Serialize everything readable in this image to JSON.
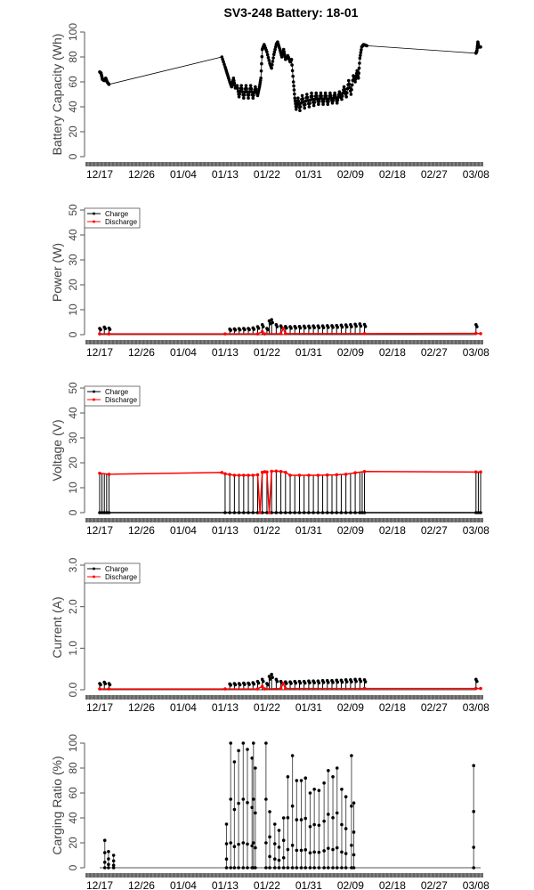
{
  "title": "SV3-248 Battery: 18-01",
  "x_axis": {
    "origin_date": "12/17",
    "tick_labels": [
      "12/17",
      "12/26",
      "01/04",
      "01/13",
      "01/22",
      "01/31",
      "02/09",
      "02/18",
      "02/27",
      "03/08"
    ],
    "tick_days": [
      0,
      9,
      18,
      27,
      36,
      45,
      54,
      63,
      72,
      81
    ],
    "day_range": [
      -3,
      82.5
    ]
  },
  "colors": {
    "charge": "#000000",
    "discharge": "#ff0000",
    "axis": "#555555"
  },
  "chart_data": [
    {
      "type": "line",
      "ylabel": "Battery Capacity (Wh)",
      "ylim": [
        0,
        100
      ],
      "yticks": [
        0,
        20,
        40,
        60,
        80,
        100
      ],
      "legend": null,
      "series": [
        {
          "name": "Battery Capacity",
          "color": "#000000",
          "points": [
            [
              0,
              68
            ],
            [
              0.3,
              67
            ],
            [
              0.6,
              62
            ],
            [
              1,
              61
            ],
            [
              1.3,
              63
            ],
            [
              1.6,
              60
            ],
            [
              2,
              58
            ],
            [
              26.3,
              80
            ],
            [
              27,
              72
            ],
            [
              27.5,
              66
            ],
            [
              28,
              60
            ],
            [
              28.4,
              56
            ],
            [
              28.8,
              63
            ],
            [
              29.2,
              55
            ],
            [
              29.6,
              57
            ],
            [
              30,
              48
            ],
            [
              30.5,
              57
            ],
            [
              31,
              47
            ],
            [
              31.5,
              57
            ],
            [
              32,
              47
            ],
            [
              32.5,
              57
            ],
            [
              33,
              47
            ],
            [
              33.5,
              56
            ],
            [
              34,
              49
            ],
            [
              34.4,
              56
            ],
            [
              34.7,
              63
            ],
            [
              35,
              86
            ],
            [
              35.4,
              90
            ],
            [
              36,
              84
            ],
            [
              36.6,
              75
            ],
            [
              37,
              71
            ],
            [
              37.5,
              82
            ],
            [
              38,
              90
            ],
            [
              38.3,
              92
            ],
            [
              38.8,
              86
            ],
            [
              39.2,
              80
            ],
            [
              39.6,
              86
            ],
            [
              40,
              78
            ],
            [
              40.5,
              81
            ],
            [
              41,
              76
            ],
            [
              41.3,
              78
            ],
            [
              41.7,
              60
            ],
            [
              42,
              47
            ],
            [
              42.3,
              38
            ],
            [
              42.7,
              47
            ],
            [
              43.1,
              37
            ],
            [
              43.6,
              49
            ],
            [
              44.1,
              39
            ],
            [
              44.6,
              50
            ],
            [
              45.1,
              40
            ],
            [
              45.6,
              51
            ],
            [
              46.1,
              41
            ],
            [
              46.6,
              51
            ],
            [
              47.1,
              42
            ],
            [
              47.6,
              51
            ],
            [
              48.1,
              42
            ],
            [
              48.6,
              51
            ],
            [
              49.1,
              42
            ],
            [
              49.6,
              51
            ],
            [
              50.1,
              43
            ],
            [
              50.6,
              51
            ],
            [
              51.1,
              43
            ],
            [
              51.6,
              52
            ],
            [
              52.1,
              46
            ],
            [
              52.6,
              56
            ],
            [
              53.1,
              48
            ],
            [
              53.6,
              61
            ],
            [
              54.1,
              50
            ],
            [
              54.6,
              65
            ],
            [
              55,
              60
            ],
            [
              55.4,
              69
            ],
            [
              55.7,
              63
            ],
            [
              56,
              79
            ],
            [
              56.4,
              88
            ],
            [
              56.8,
              90
            ],
            [
              57.5,
              89
            ],
            [
              81,
              83
            ],
            [
              81.2,
              85
            ],
            [
              81.4,
              92
            ],
            [
              81.6,
              88
            ],
            [
              82,
              88
            ]
          ]
        }
      ]
    },
    {
      "type": "line",
      "ylabel": "Power (W)",
      "ylim": [
        0,
        50
      ],
      "yticks": [
        0,
        10,
        20,
        30,
        40,
        50
      ],
      "legend": {
        "position": "top-left",
        "entries": [
          "Charge",
          "Discharge"
        ]
      },
      "series": [
        {
          "name": "Charge",
          "color": "#000000",
          "daily_peaks": [
            [
              0,
              2.5
            ],
            [
              1,
              3
            ],
            [
              2,
              2.6
            ],
            [
              28,
              2.2
            ],
            [
              29,
              2.3
            ],
            [
              30,
              2.4
            ],
            [
              31,
              2.5
            ],
            [
              32,
              2.5
            ],
            [
              33,
              2.7
            ],
            [
              34,
              3.2
            ],
            [
              35,
              4
            ],
            [
              36,
              2.5
            ],
            [
              36.5,
              5.5
            ],
            [
              37,
              6
            ],
            [
              38,
              4
            ],
            [
              39,
              3.5
            ],
            [
              40,
              3.3
            ],
            [
              41,
              3.2
            ],
            [
              42,
              3.3
            ],
            [
              43,
              3.3
            ],
            [
              44,
              3.4
            ],
            [
              45,
              3.4
            ],
            [
              46,
              3.5
            ],
            [
              47,
              3.5
            ],
            [
              48,
              3.5
            ],
            [
              49,
              3.6
            ],
            [
              50,
              3.6
            ],
            [
              51,
              3.7
            ],
            [
              52,
              3.8
            ],
            [
              53,
              3.9
            ],
            [
              54,
              4
            ],
            [
              55,
              4.2
            ],
            [
              56,
              4.3
            ],
            [
              57,
              4.1
            ],
            [
              81,
              4
            ]
          ]
        },
        {
          "name": "Discharge",
          "color": "#ff0000",
          "points": [
            [
              0,
              0.3
            ],
            [
              2,
              0.3
            ],
            [
              27,
              0.3
            ],
            [
              34,
              0.3
            ],
            [
              35,
              1.2
            ],
            [
              35.5,
              0.3
            ],
            [
              39,
              0.4
            ],
            [
              39.5,
              2.5
            ],
            [
              40,
              0.4
            ],
            [
              57,
              0.4
            ],
            [
              81,
              0.5
            ],
            [
              82,
              0.4
            ]
          ]
        }
      ]
    },
    {
      "type": "line",
      "ylabel": "Voltage (V)",
      "ylim": [
        0,
        50
      ],
      "yticks": [
        0,
        10,
        20,
        30,
        40,
        50
      ],
      "legend": {
        "position": "top-left",
        "entries": [
          "Charge",
          "Discharge"
        ]
      },
      "series": [
        {
          "name": "Charge",
          "color": "#000000",
          "cycle_days": [
            0,
            0.5,
            1,
            1.5,
            2,
            27,
            28,
            29,
            30,
            31,
            32,
            33,
            34,
            35,
            36,
            37,
            38,
            39,
            40,
            41,
            42,
            43,
            44,
            45,
            46,
            47,
            48,
            49,
            50,
            51,
            52,
            53,
            54,
            55,
            56,
            56.5,
            57,
            81,
            81.5,
            82
          ],
          "value": 0
        },
        {
          "name": "Discharge",
          "color": "#ff0000",
          "points": [
            [
              0,
              15.8
            ],
            [
              2,
              15.4
            ],
            [
              26.3,
              16.1
            ],
            [
              27,
              15.6
            ],
            [
              28,
              15.3
            ],
            [
              29,
              15
            ],
            [
              30,
              15
            ],
            [
              31,
              15
            ],
            [
              32,
              15
            ],
            [
              33,
              15
            ],
            [
              34,
              15.2
            ],
            [
              34.5,
              0
            ],
            [
              35,
              16.2
            ],
            [
              35.5,
              16.4
            ],
            [
              36,
              16.3
            ],
            [
              36.5,
              0
            ],
            [
              37,
              16.6
            ],
            [
              38,
              16.7
            ],
            [
              39,
              16.5
            ],
            [
              40,
              16.2
            ],
            [
              41,
              15
            ],
            [
              43,
              15
            ],
            [
              45,
              15
            ],
            [
              47,
              15
            ],
            [
              49,
              15.1
            ],
            [
              51,
              15.2
            ],
            [
              53,
              15.4
            ],
            [
              55,
              16
            ],
            [
              57,
              16.5
            ],
            [
              81,
              16.3
            ],
            [
              82,
              16.3
            ]
          ]
        }
      ]
    },
    {
      "type": "line",
      "ylabel": "Current (A)",
      "ylim": [
        0,
        3
      ],
      "yticks": [
        0,
        1,
        2,
        3
      ],
      "ytick_labels": [
        "0.0",
        "1.0",
        "2.0",
        "3.0"
      ],
      "legend": {
        "position": "top-left",
        "entries": [
          "Charge",
          "Discharge"
        ]
      },
      "series": [
        {
          "name": "Charge",
          "color": "#000000",
          "daily_peaks": [
            [
              0,
              0.15
            ],
            [
              1,
              0.18
            ],
            [
              2,
              0.15
            ],
            [
              28,
              0.14
            ],
            [
              29,
              0.15
            ],
            [
              30,
              0.15
            ],
            [
              31,
              0.16
            ],
            [
              32,
              0.16
            ],
            [
              33,
              0.17
            ],
            [
              34,
              0.2
            ],
            [
              35,
              0.25
            ],
            [
              36,
              0.15
            ],
            [
              36.5,
              0.32
            ],
            [
              37,
              0.37
            ],
            [
              38,
              0.25
            ],
            [
              39,
              0.2
            ],
            [
              40,
              0.19
            ],
            [
              41,
              0.19
            ],
            [
              42,
              0.2
            ],
            [
              43,
              0.2
            ],
            [
              44,
              0.2
            ],
            [
              45,
              0.21
            ],
            [
              46,
              0.21
            ],
            [
              47,
              0.21
            ],
            [
              48,
              0.22
            ],
            [
              49,
              0.22
            ],
            [
              50,
              0.22
            ],
            [
              51,
              0.23
            ],
            [
              52,
              0.23
            ],
            [
              53,
              0.24
            ],
            [
              54,
              0.24
            ],
            [
              55,
              0.25
            ],
            [
              56,
              0.25
            ],
            [
              57,
              0.24
            ],
            [
              81,
              0.25
            ]
          ]
        },
        {
          "name": "Discharge",
          "color": "#ff0000",
          "points": [
            [
              0,
              0.02
            ],
            [
              2,
              0.02
            ],
            [
              27,
              0.02
            ],
            [
              34,
              0.02
            ],
            [
              35,
              0.08
            ],
            [
              35.5,
              0.02
            ],
            [
              39,
              0.03
            ],
            [
              39.5,
              0.15
            ],
            [
              40,
              0.03
            ],
            [
              57,
              0.03
            ],
            [
              81,
              0.03
            ],
            [
              82,
              0.03
            ]
          ]
        }
      ]
    },
    {
      "type": "line",
      "ylabel": "Carging Ratio (%)",
      "ylim": [
        0,
        100
      ],
      "yticks": [
        0,
        20,
        40,
        60,
        80,
        100
      ],
      "legend": null,
      "series": [
        {
          "name": "Carging Ratio",
          "color": "#000000",
          "spikes": [
            [
              1.1,
              22
            ],
            [
              1.9,
              13
            ],
            [
              3.0,
              10
            ],
            [
              27.3,
              35
            ],
            [
              28.2,
              100
            ],
            [
              29.0,
              85
            ],
            [
              29.9,
              94
            ],
            [
              30.9,
              100
            ],
            [
              31.8,
              95
            ],
            [
              32.8,
              88
            ],
            [
              33.1,
              100
            ],
            [
              33.5,
              80
            ],
            [
              35.8,
              100
            ],
            [
              36.6,
              45
            ],
            [
              37.7,
              35
            ],
            [
              38.6,
              30
            ],
            [
              39.6,
              40
            ],
            [
              40.5,
              73
            ],
            [
              41.5,
              90
            ],
            [
              42.4,
              70
            ],
            [
              43.4,
              70
            ],
            [
              44.3,
              72
            ],
            [
              45.3,
              60
            ],
            [
              46.2,
              63
            ],
            [
              47.2,
              62
            ],
            [
              48.3,
              68
            ],
            [
              49.2,
              78
            ],
            [
              50.2,
              73
            ],
            [
              51.1,
              80
            ],
            [
              52.1,
              63
            ],
            [
              53.0,
              57
            ],
            [
              54.2,
              90
            ],
            [
              54.7,
              52
            ],
            [
              80.5,
              82
            ]
          ]
        }
      ]
    }
  ]
}
